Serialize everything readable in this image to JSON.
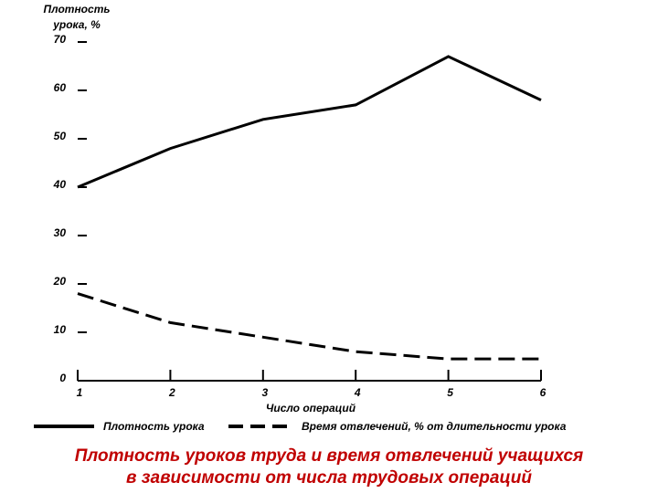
{
  "chart_data": {
    "type": "line",
    "title": [
      "Плотность уроков труда и время отвлечений учащихся",
      "в зависимости от числа трудовых операций"
    ],
    "ylabel": [
      "Плотность",
      "урока, %"
    ],
    "xlabel": "Число операций",
    "x": [
      1,
      2,
      3,
      4,
      5,
      6
    ],
    "series": [
      {
        "name": "Плотность урока",
        "color": "#000000",
        "style": "solid",
        "values": [
          40,
          48,
          54,
          57,
          67,
          58
        ]
      },
      {
        "name": "Время отвлечений, % от длительности урока",
        "color": "#000000",
        "style": "dashed",
        "values": [
          18,
          12,
          9,
          6,
          4.5,
          4.5
        ]
      }
    ],
    "xlim": [
      1,
      6
    ],
    "xticks": [
      1,
      2,
      3,
      4,
      5,
      6
    ],
    "ylim": [
      0,
      70
    ],
    "yticks": [
      0,
      10,
      20,
      30,
      40,
      50,
      60,
      70
    ],
    "title_color": "#c00000"
  }
}
